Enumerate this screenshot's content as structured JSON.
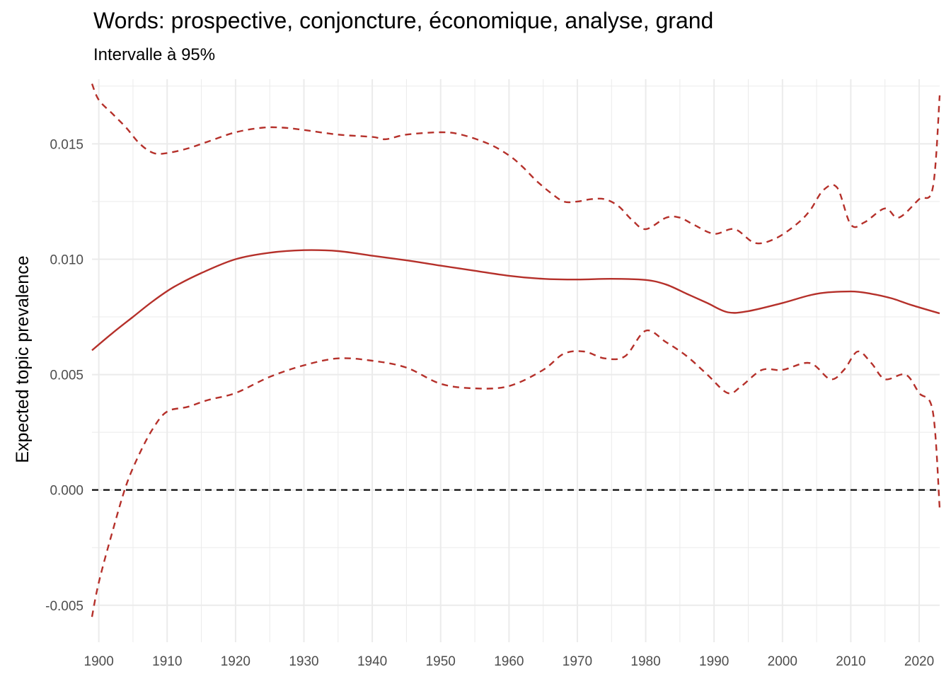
{
  "chart_data": {
    "type": "line",
    "title": "Words: prospective, conjoncture, économique, analyse, grand",
    "subtitle": "Intervalle à 95%",
    "xlabel": "",
    "ylabel": "Expected topic prevalence",
    "xlim": [
      1899,
      2023
    ],
    "ylim": [
      -0.0066,
      0.0178
    ],
    "x_ticks": [
      1900,
      1910,
      1920,
      1930,
      1940,
      1950,
      1960,
      1970,
      1980,
      1990,
      2000,
      2010,
      2020
    ],
    "x_tick_labels": [
      "1900",
      "1910",
      "1920",
      "1930",
      "1940",
      "1950",
      "1960",
      "1970",
      "1980",
      "1990",
      "2000",
      "2010",
      "2020"
    ],
    "y_ticks": [
      -0.005,
      0,
      0.005,
      0.01,
      0.015
    ],
    "y_tick_labels": [
      "-0.005",
      "0.000",
      "0.005",
      "0.010",
      "0.015"
    ],
    "grid": true,
    "reference_line": {
      "y": 0,
      "style": "dashed",
      "color": "#000000"
    },
    "colors": {
      "estimate": "#b5302a",
      "interval": "#b5302a",
      "grid": "#ebebeb"
    },
    "series": [
      {
        "style": "solid",
        "points": [
          [
            1899,
            0.00605
          ],
          [
            1902,
            0.0068
          ],
          [
            1905,
            0.0075
          ],
          [
            1908,
            0.0082
          ],
          [
            1911,
            0.0088
          ],
          [
            1915,
            0.0094
          ],
          [
            1920,
            0.01
          ],
          [
            1925,
            0.01028
          ],
          [
            1930,
            0.01039
          ],
          [
            1935,
            0.01035
          ],
          [
            1940,
            0.01015
          ],
          [
            1945,
            0.00995
          ],
          [
            1950,
            0.00972
          ],
          [
            1955,
            0.0095
          ],
          [
            1960,
            0.00928
          ],
          [
            1965,
            0.00915
          ],
          [
            1970,
            0.00912
          ],
          [
            1975,
            0.00915
          ],
          [
            1980,
            0.0091
          ],
          [
            1983,
            0.0089
          ],
          [
            1986,
            0.0085
          ],
          [
            1989,
            0.0081
          ],
          [
            1992,
            0.0077
          ],
          [
            1995,
            0.00775
          ],
          [
            2000,
            0.0081
          ],
          [
            2005,
            0.0085
          ],
          [
            2010,
            0.0086
          ],
          [
            2013,
            0.0085
          ],
          [
            2016,
            0.0083
          ],
          [
            2019,
            0.008
          ],
          [
            2023,
            0.00765
          ]
        ]
      },
      {
        "style": "dashed",
        "points": [
          [
            1899,
            0.0176
          ],
          [
            1900,
            0.0169
          ],
          [
            1902,
            0.0163
          ],
          [
            1904,
            0.0157
          ],
          [
            1906,
            0.015
          ],
          [
            1908,
            0.0146
          ],
          [
            1910,
            0.0146
          ],
          [
            1913,
            0.0148
          ],
          [
            1916,
            0.0151
          ],
          [
            1920,
            0.0155
          ],
          [
            1924,
            0.0157
          ],
          [
            1927,
            0.0157
          ],
          [
            1930,
            0.0156
          ],
          [
            1935,
            0.0154
          ],
          [
            1940,
            0.0153
          ],
          [
            1942,
            0.0152
          ],
          [
            1945,
            0.0154
          ],
          [
            1950,
            0.0155
          ],
          [
            1953,
            0.0154
          ],
          [
            1957,
            0.015
          ],
          [
            1960,
            0.0145
          ],
          [
            1962,
            0.014
          ],
          [
            1964,
            0.0134
          ],
          [
            1966,
            0.0129
          ],
          [
            1968,
            0.0125
          ],
          [
            1970,
            0.0125
          ],
          [
            1972,
            0.0126
          ],
          [
            1974,
            0.0126
          ],
          [
            1976,
            0.0123
          ],
          [
            1978,
            0.0117
          ],
          [
            1980,
            0.0113
          ],
          [
            1983,
            0.0118
          ],
          [
            1985,
            0.0118
          ],
          [
            1987,
            0.0115
          ],
          [
            1990,
            0.0111
          ],
          [
            1993,
            0.0113
          ],
          [
            1996,
            0.0107
          ],
          [
            1999,
            0.0109
          ],
          [
            2002,
            0.0115
          ],
          [
            2004,
            0.0121
          ],
          [
            2006,
            0.013
          ],
          [
            2008,
            0.0131
          ],
          [
            2010,
            0.0115
          ],
          [
            2012,
            0.0116
          ],
          [
            2015,
            0.0122
          ],
          [
            2017,
            0.0118
          ],
          [
            2020,
            0.0126
          ],
          [
            2022,
            0.0131
          ],
          [
            2023,
            0.0171
          ]
        ]
      },
      {
        "style": "dashed",
        "points": [
          [
            1899,
            -0.0055
          ],
          [
            1900,
            -0.004
          ],
          [
            1902,
            -0.0018
          ],
          [
            1904,
            0.0002
          ],
          [
            1906,
            0.0016
          ],
          [
            1908,
            0.0027
          ],
          [
            1910,
            0.0034
          ],
          [
            1913,
            0.0036
          ],
          [
            1916,
            0.0039
          ],
          [
            1920,
            0.0042
          ],
          [
            1925,
            0.0049
          ],
          [
            1930,
            0.0054
          ],
          [
            1935,
            0.0057
          ],
          [
            1940,
            0.0056
          ],
          [
            1945,
            0.0053
          ],
          [
            1950,
            0.0046
          ],
          [
            1955,
            0.0044
          ],
          [
            1960,
            0.0045
          ],
          [
            1965,
            0.0052
          ],
          [
            1968,
            0.0059
          ],
          [
            1971,
            0.006
          ],
          [
            1974,
            0.0057
          ],
          [
            1977,
            0.0058
          ],
          [
            1980,
            0.0069
          ],
          [
            1983,
            0.0064
          ],
          [
            1986,
            0.0058
          ],
          [
            1989,
            0.005
          ],
          [
            1992,
            0.0042
          ],
          [
            1994,
            0.0045
          ],
          [
            1997,
            0.0052
          ],
          [
            2000,
            0.0052
          ],
          [
            2004,
            0.0055
          ],
          [
            2007,
            0.0048
          ],
          [
            2009,
            0.0052
          ],
          [
            2011,
            0.006
          ],
          [
            2013,
            0.0055
          ],
          [
            2015,
            0.0048
          ],
          [
            2018,
            0.005
          ],
          [
            2020,
            0.0042
          ],
          [
            2022,
            0.0034
          ],
          [
            2023,
            -0.0008
          ]
        ]
      }
    ]
  }
}
